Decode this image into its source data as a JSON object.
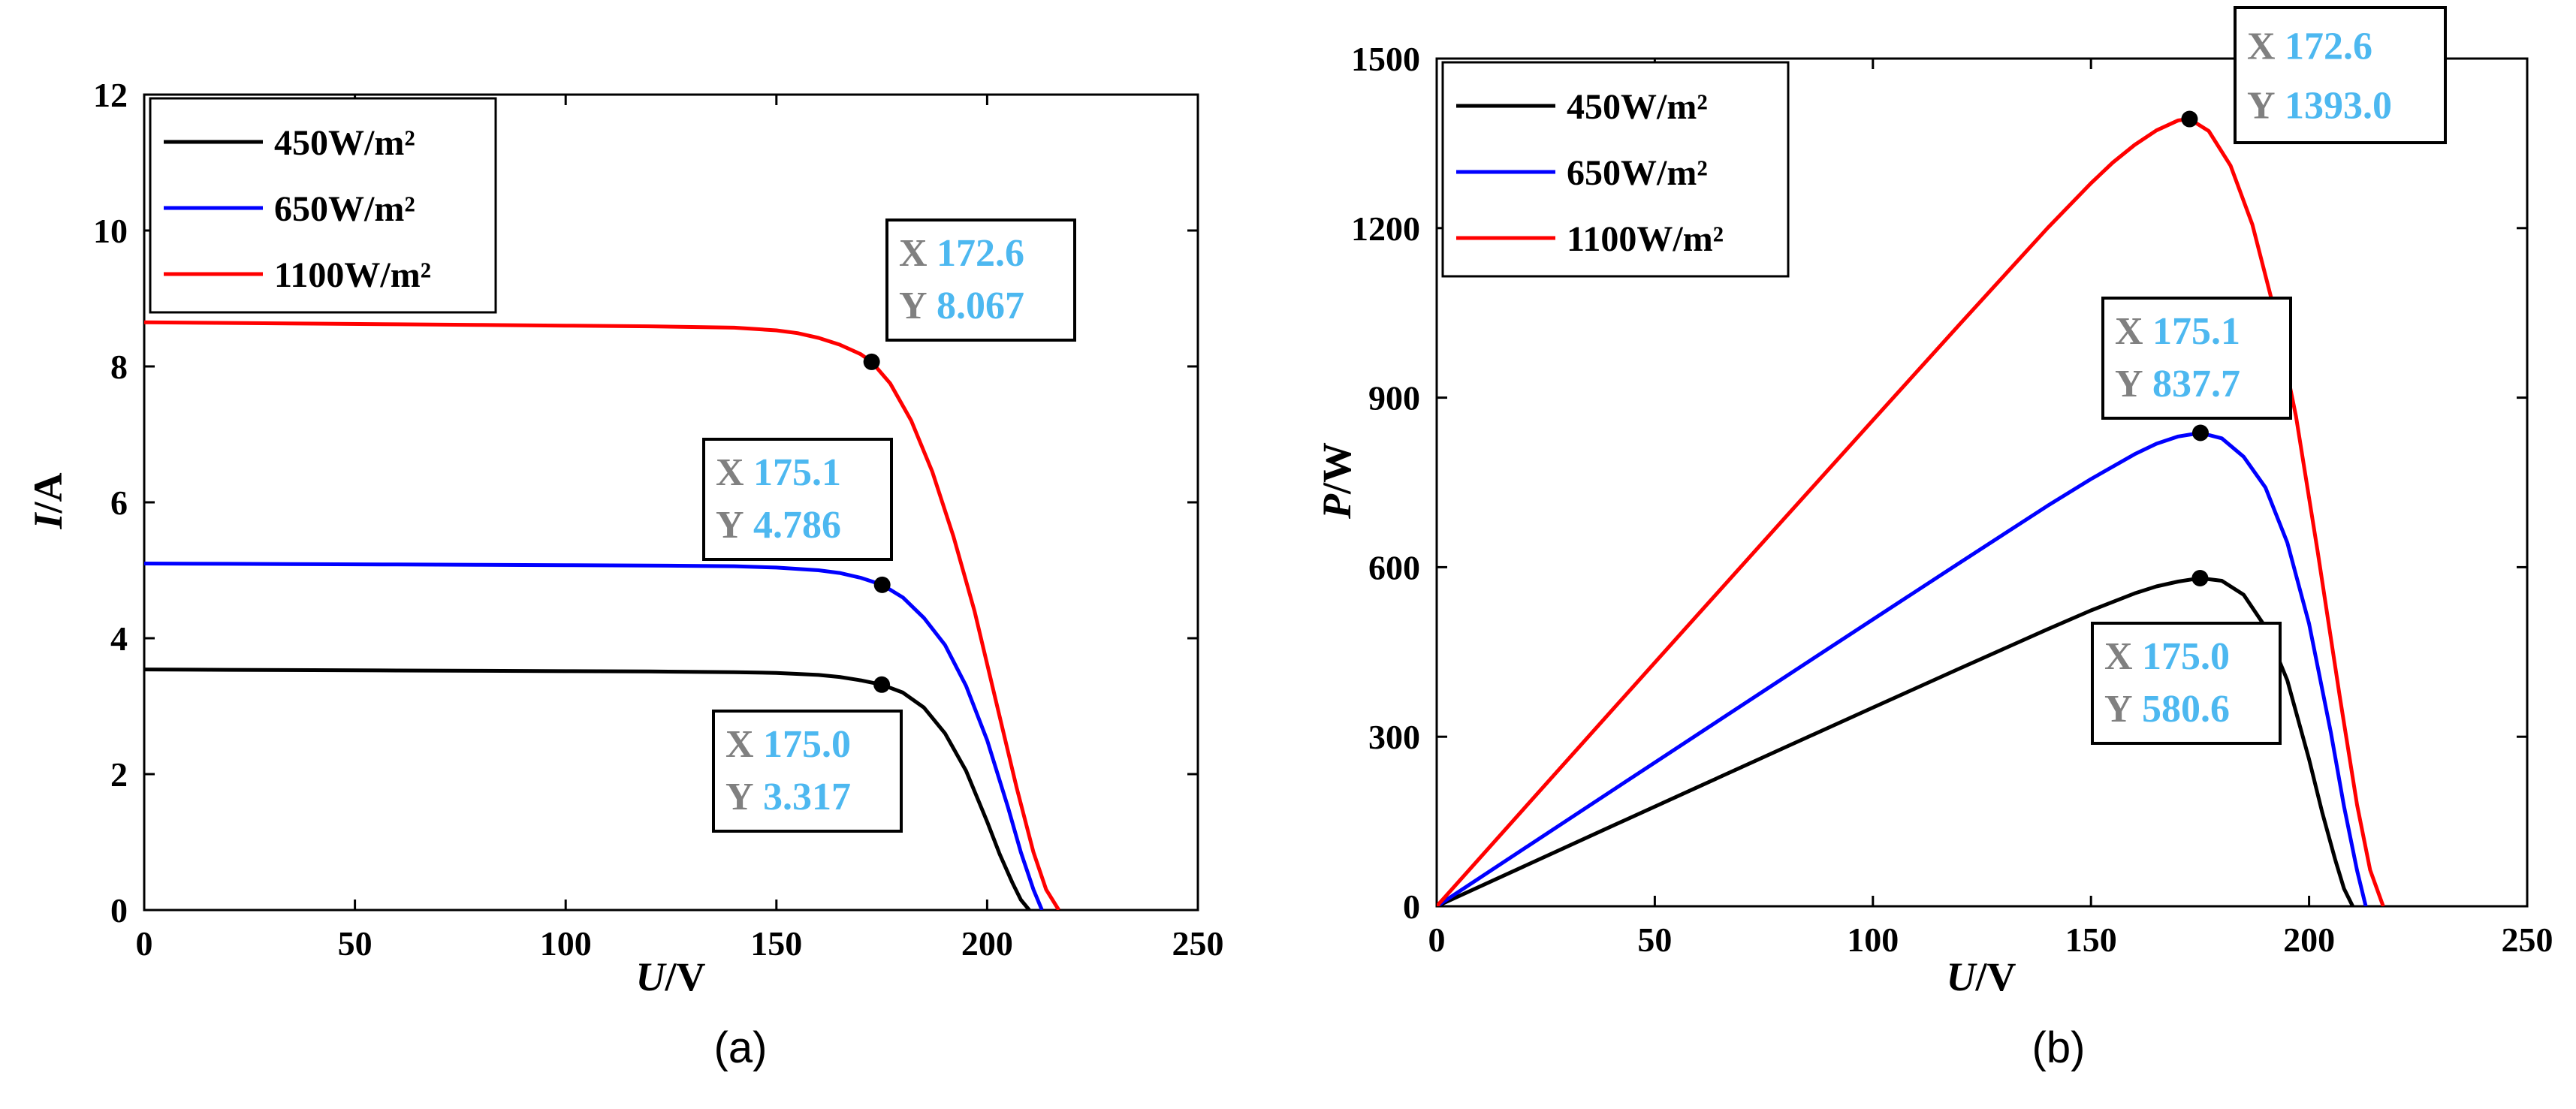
{
  "chart_data": [
    {
      "type": "line",
      "panel_label": "(a)",
      "xlabel": "U/V",
      "ylabel": "I/A",
      "xlim": [
        0,
        250
      ],
      "ylim": [
        0,
        12
      ],
      "xticks": [
        0,
        50,
        100,
        150,
        200,
        250
      ],
      "yticks": [
        0,
        2,
        4,
        6,
        8,
        10,
        12
      ],
      "legend": {
        "position": "top-left"
      },
      "series": [
        {
          "name": "450W/m²",
          "color": "#000000",
          "x": [
            0,
            20,
            40,
            60,
            80,
            100,
            120,
            140,
            150,
            160,
            165,
            170,
            175,
            180,
            185,
            190,
            195,
            200,
            203,
            206,
            208,
            210
          ],
          "y": [
            3.54,
            3.535,
            3.53,
            3.525,
            3.52,
            3.515,
            3.51,
            3.5,
            3.49,
            3.46,
            3.43,
            3.38,
            3.317,
            3.2,
            2.98,
            2.6,
            2.05,
            1.3,
            0.82,
            0.4,
            0.15,
            0
          ]
        },
        {
          "name": "650W/m²",
          "color": "#0000ff",
          "x": [
            0,
            20,
            40,
            60,
            80,
            100,
            120,
            140,
            150,
            160,
            165,
            170,
            175.1,
            180,
            185,
            190,
            195,
            200,
            205,
            208,
            211,
            213
          ],
          "y": [
            5.1,
            5.095,
            5.09,
            5.085,
            5.08,
            5.075,
            5.07,
            5.06,
            5.04,
            5.0,
            4.96,
            4.89,
            4.786,
            4.6,
            4.3,
            3.9,
            3.3,
            2.5,
            1.5,
            0.85,
            0.3,
            0
          ]
        },
        {
          "name": "1100W/m²",
          "color": "#ff0000",
          "x": [
            0,
            20,
            40,
            60,
            80,
            100,
            120,
            140,
            150,
            155,
            160,
            165,
            170,
            172.6,
            177,
            182,
            187,
            192,
            197,
            202,
            207,
            211,
            214,
            217
          ],
          "y": [
            8.65,
            8.64,
            8.63,
            8.62,
            8.61,
            8.6,
            8.59,
            8.57,
            8.53,
            8.49,
            8.42,
            8.32,
            8.18,
            8.067,
            7.75,
            7.2,
            6.45,
            5.5,
            4.4,
            3.1,
            1.8,
            0.85,
            0.3,
            0
          ]
        }
      ],
      "annotations": [
        {
          "series": "450W/m²",
          "x": 175.0,
          "y": 3.317,
          "x_label": "X",
          "y_label": "Y",
          "x_text": "175.0",
          "y_text": "3.317"
        },
        {
          "series": "650W/m²",
          "x": 175.1,
          "y": 4.786,
          "x_label": "X",
          "y_label": "Y",
          "x_text": "175.1",
          "y_text": "4.786"
        },
        {
          "series": "1100W/m²",
          "x": 172.6,
          "y": 8.067,
          "x_label": "X",
          "y_label": "Y",
          "x_text": "172.6",
          "y_text": "8.067"
        }
      ]
    },
    {
      "type": "line",
      "panel_label": "(b)",
      "xlabel": "U/V",
      "ylabel": "P/W",
      "xlim": [
        0,
        250
      ],
      "ylim": [
        0,
        1500
      ],
      "xticks": [
        0,
        50,
        100,
        150,
        200,
        250
      ],
      "yticks": [
        0,
        300,
        600,
        900,
        1200,
        1500
      ],
      "legend": {
        "position": "top-left"
      },
      "series": [
        {
          "name": "450W/m²",
          "color": "#000000",
          "x": [
            0,
            20,
            40,
            60,
            80,
            100,
            120,
            140,
            150,
            160,
            165,
            170,
            175,
            180,
            185,
            190,
            195,
            200,
            203,
            206,
            208,
            210
          ],
          "y": [
            0,
            70.7,
            141.2,
            211.5,
            281.6,
            351.5,
            421.2,
            490,
            523.5,
            553.6,
            566,
            574.6,
            580.6,
            576,
            551.3,
            494,
            399.8,
            260,
            166.5,
            82.4,
            31.2,
            0
          ]
        },
        {
          "name": "650W/m²",
          "color": "#0000ff",
          "x": [
            0,
            20,
            40,
            60,
            80,
            100,
            120,
            140,
            150,
            160,
            165,
            170,
            175.1,
            180,
            185,
            190,
            195,
            200,
            205,
            208,
            211,
            213
          ],
          "y": [
            0,
            101.9,
            203.6,
            305.1,
            406.4,
            507.5,
            608.4,
            708.4,
            756,
            800,
            818.4,
            831.3,
            837.7,
            828,
            795.5,
            741,
            643.5,
            500,
            307.5,
            176.8,
            63.3,
            0
          ]
        },
        {
          "name": "1100W/m²",
          "color": "#ff0000",
          "x": [
            0,
            20,
            40,
            60,
            80,
            100,
            120,
            140,
            150,
            155,
            160,
            165,
            170,
            172.6,
            177,
            182,
            187,
            192,
            197,
            202,
            207,
            211,
            214,
            217
          ],
          "y": [
            0,
            172.8,
            345.2,
            517.2,
            688.8,
            860,
            1030.8,
            1199.8,
            1279.5,
            1316,
            1347.2,
            1372.8,
            1390.6,
            1393,
            1371.8,
            1310.4,
            1206.2,
            1056,
            866.8,
            626.2,
            372.6,
            179.4,
            64.2,
            0
          ]
        }
      ],
      "annotations": [
        {
          "series": "450W/m²",
          "x": 175.0,
          "y": 580.6,
          "x_label": "X",
          "y_label": "Y",
          "x_text": "175.0",
          "y_text": "580.6"
        },
        {
          "series": "650W/m²",
          "x": 175.1,
          "y": 837.7,
          "x_label": "X",
          "y_label": "Y",
          "x_text": "175.1",
          "y_text": "837.7"
        },
        {
          "series": "1100W/m²",
          "x": 172.6,
          "y": 1393.0,
          "x_label": "X",
          "y_label": "Y",
          "x_text": "172.6",
          "y_text": "1393.0"
        }
      ]
    }
  ]
}
